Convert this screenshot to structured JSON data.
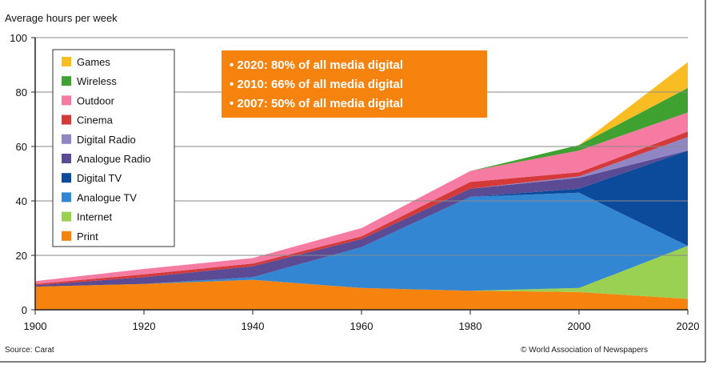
{
  "colors": {
    "Games": "#f9bd24",
    "Wireless": "#3fa12f",
    "Outdoor": "#f67ba3",
    "Cinema": "#d53a3a",
    "Digital Radio": "#9186c4",
    "Analogue Radio": "#5b4a94",
    "Digital TV": "#0c4a9c",
    "Analogue TV": "#3386d2",
    "Internet": "#9bd152",
    "Print": "#f7830f",
    "callout": "#f7830f",
    "grid": "#8a8a8a",
    "frame": "#555555"
  },
  "source": "Source: Carat",
  "credit": "© World Association of Newspapers",
  "callouts": [
    "• 2020: 80% of all media digital",
    "• 2010: 66% of all media digital",
    "• 2007: 50% of all media digital"
  ],
  "chart_data": {
    "type": "area",
    "stacked": true,
    "title": "",
    "xlabel": "",
    "ylabel": "Average hours per week",
    "x": [
      1900,
      1920,
      1940,
      1960,
      1980,
      2000,
      2020
    ],
    "x_ticks": [
      "1900",
      "1920",
      "1940",
      "1960",
      "1980",
      "2000",
      "2020"
    ],
    "y_ticks": [
      "0",
      "20",
      "40",
      "60",
      "80",
      "100"
    ],
    "xlim": [
      1900,
      2020
    ],
    "ylim": [
      0,
      100
    ],
    "grid": true,
    "legend_position": "top-left",
    "legend_order": [
      "Games",
      "Wireless",
      "Outdoor",
      "Cinema",
      "Digital Radio",
      "Analogue Radio",
      "Digital TV",
      "Analogue TV",
      "Internet",
      "Print"
    ],
    "series": [
      {
        "name": "Print",
        "values": [
          8.5,
          9.5,
          11,
          8,
          7,
          6.5,
          4
        ]
      },
      {
        "name": "Internet",
        "values": [
          0,
          0,
          0,
          0,
          0,
          1.5,
          19.5
        ]
      },
      {
        "name": "Analogue TV",
        "values": [
          0,
          0,
          1,
          15,
          34.5,
          35,
          0
        ]
      },
      {
        "name": "Digital TV",
        "values": [
          0,
          0,
          0,
          0,
          0,
          1.5,
          35
        ]
      },
      {
        "name": "Analogue Radio",
        "values": [
          0.5,
          2.5,
          4,
          3,
          3,
          4,
          0
        ]
      },
      {
        "name": "Digital Radio",
        "values": [
          0,
          0,
          0,
          0,
          0,
          0.5,
          5
        ]
      },
      {
        "name": "Cinema",
        "values": [
          0.5,
          1,
          1,
          1,
          2.5,
          1.5,
          2
        ]
      },
      {
        "name": "Outdoor",
        "values": [
          1,
          2,
          2,
          3,
          4,
          8,
          7
        ]
      },
      {
        "name": "Wireless",
        "values": [
          0,
          0,
          0,
          0,
          0,
          2,
          9
        ]
      },
      {
        "name": "Games",
        "values": [
          0,
          0,
          0,
          0,
          0,
          0,
          9.5
        ]
      }
    ]
  }
}
